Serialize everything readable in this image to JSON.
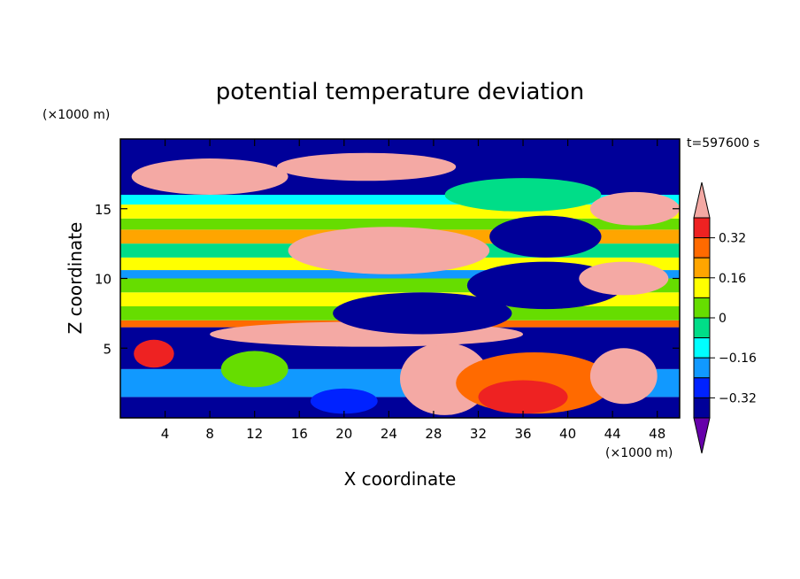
{
  "chart_data": {
    "type": "heatmap",
    "title": "potential temperature deviation",
    "xlabel": "X coordinate",
    "ylabel": "Z coordinate",
    "x_unit_label": "(×1000 m)",
    "y_unit_label": "(×1000 m)",
    "time_label": "t=597600 s",
    "xlim": [
      0,
      50
    ],
    "ylim": [
      0,
      20
    ],
    "x_ticks": [
      4,
      8,
      12,
      16,
      20,
      24,
      28,
      32,
      36,
      40,
      44,
      48
    ],
    "y_ticks": [
      5,
      10,
      15
    ],
    "colorbar": {
      "levels": [
        -0.4,
        -0.32,
        -0.24,
        -0.16,
        -0.08,
        0,
        0.08,
        0.16,
        0.24,
        0.32,
        0.4
      ],
      "tick_labels": [
        "0.32",
        "0.16",
        "0",
        "−0.16",
        "−0.32"
      ],
      "colors_top_to_bottom": [
        "#f4a9a4",
        "#ee2222",
        "#ff6a00",
        "#ffa500",
        "#ffff00",
        "#66dd00",
        "#00dd88",
        "#00ffff",
        "#1199ff",
        "#0022ff",
        "#000099",
        "#6600aa"
      ]
    },
    "bands": [
      {
        "z": [
          0,
          1.5
        ],
        "value": -0.36
      },
      {
        "z": [
          1.5,
          3.5
        ],
        "value": -0.2
      },
      {
        "z": [
          3.5,
          6.5
        ],
        "value": -0.4
      },
      {
        "z": [
          6.5,
          7
        ],
        "value": 0.3
      },
      {
        "z": [
          7,
          8
        ],
        "value": 0.05
      },
      {
        "z": [
          8,
          9
        ],
        "value": 0.12
      },
      {
        "z": [
          9,
          10
        ],
        "value": 0.02
      },
      {
        "z": [
          10,
          10.6
        ],
        "value": -0.2
      },
      {
        "z": [
          10.6,
          11.5
        ],
        "value": 0.1
      },
      {
        "z": [
          11.5,
          12.5
        ],
        "value": -0.05
      },
      {
        "z": [
          12.5,
          13.5
        ],
        "value": 0.18
      },
      {
        "z": [
          13.5,
          14.3
        ],
        "value": 0.0
      },
      {
        "z": [
          14.3,
          15.3
        ],
        "value": 0.15
      },
      {
        "z": [
          15.3,
          16
        ],
        "value": -0.1
      },
      {
        "z": [
          16,
          20
        ],
        "value": -0.4
      }
    ],
    "blobs": [
      {
        "x": 3,
        "z": 4.6,
        "rx": 1.8,
        "rz": 1.0,
        "value": 0.32
      },
      {
        "x": 12,
        "z": 3.5,
        "rx": 3,
        "rz": 1.3,
        "value": 0.05
      },
      {
        "x": 20,
        "z": 1.2,
        "rx": 3,
        "rz": 0.9,
        "value": -0.32
      },
      {
        "x": 29,
        "z": 2.8,
        "rx": 4,
        "rz": 2.6,
        "value": 0.4
      },
      {
        "x": 37,
        "z": 2.5,
        "rx": 7,
        "rz": 2.2,
        "value": 0.24
      },
      {
        "x": 36,
        "z": 1.5,
        "rx": 4,
        "rz": 1.2,
        "value": 0.32
      },
      {
        "x": 45,
        "z": 3,
        "rx": 3,
        "rz": 2.0,
        "value": 0.4
      },
      {
        "x": 22,
        "z": 6.0,
        "rx": 14,
        "rz": 0.9,
        "value": 0.4
      },
      {
        "x": 27,
        "z": 7.5,
        "rx": 8,
        "rz": 1.5,
        "value": -0.4
      },
      {
        "x": 38,
        "z": 9.5,
        "rx": 7,
        "rz": 1.7,
        "value": -0.4
      },
      {
        "x": 24,
        "z": 12,
        "rx": 9,
        "rz": 1.7,
        "value": 0.4
      },
      {
        "x": 38,
        "z": 13,
        "rx": 5,
        "rz": 1.5,
        "value": -0.4
      },
      {
        "x": 45,
        "z": 10,
        "rx": 4,
        "rz": 1.2,
        "value": 0.4
      },
      {
        "x": 8,
        "z": 17.3,
        "rx": 7,
        "rz": 1.3,
        "value": 0.4
      },
      {
        "x": 22,
        "z": 18,
        "rx": 8,
        "rz": 1.0,
        "value": 0.4
      },
      {
        "x": 36,
        "z": 16,
        "rx": 7,
        "rz": 1.2,
        "value": -0.08
      },
      {
        "x": 46,
        "z": 15,
        "rx": 4,
        "rz": 1.2,
        "value": 0.4
      }
    ]
  }
}
